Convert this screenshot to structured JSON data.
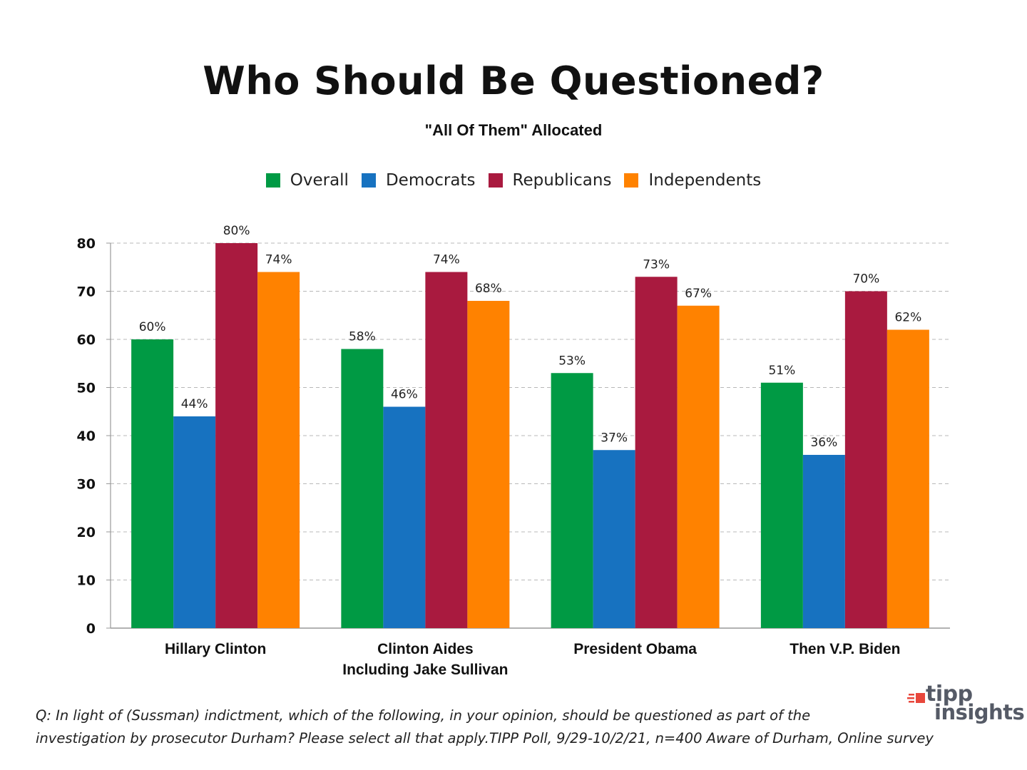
{
  "chart_data": {
    "type": "bar",
    "title": "Who Should Be Questioned?",
    "subtitle": "\"All Of Them\" Allocated",
    "categories": [
      [
        "Hillary Clinton"
      ],
      [
        "Clinton Aides",
        "Including Jake Sullivan"
      ],
      [
        "President Obama"
      ],
      [
        "Then V.P. Biden"
      ]
    ],
    "series": [
      {
        "name": "Overall",
        "color": "#009a44",
        "values": [
          60,
          58,
          53,
          51
        ]
      },
      {
        "name": "Democrats",
        "color": "#1772c0",
        "values": [
          44,
          46,
          37,
          36
        ]
      },
      {
        "name": "Republicans",
        "color": "#a91a3f",
        "values": [
          80,
          74,
          73,
          70
        ]
      },
      {
        "name": "Independents",
        "color": "#ff8200",
        "values": [
          74,
          68,
          67,
          62
        ]
      }
    ],
    "value_suffix": "%",
    "yticks": [
      0,
      10,
      20,
      30,
      40,
      50,
      60,
      70,
      80
    ],
    "ylim": [
      0,
      80
    ],
    "xlabel": "",
    "ylabel": "",
    "grid": "horizontal dashed",
    "legend_position": "top-center"
  },
  "footnote": {
    "line1": "Q:  In light of (Sussman) indictment, which of the following, in your opinion, should be questioned as part of the",
    "line2": "investigation by prosecutor Durham?  Please select all that apply.TIPP Poll, 9/29-10/2/21, n=400 Aware of Durham, Online survey"
  },
  "logo": {
    "line1": "tipp",
    "line2": "insights",
    "mark_color": "#e8473c",
    "text_color": "#555a66"
  }
}
